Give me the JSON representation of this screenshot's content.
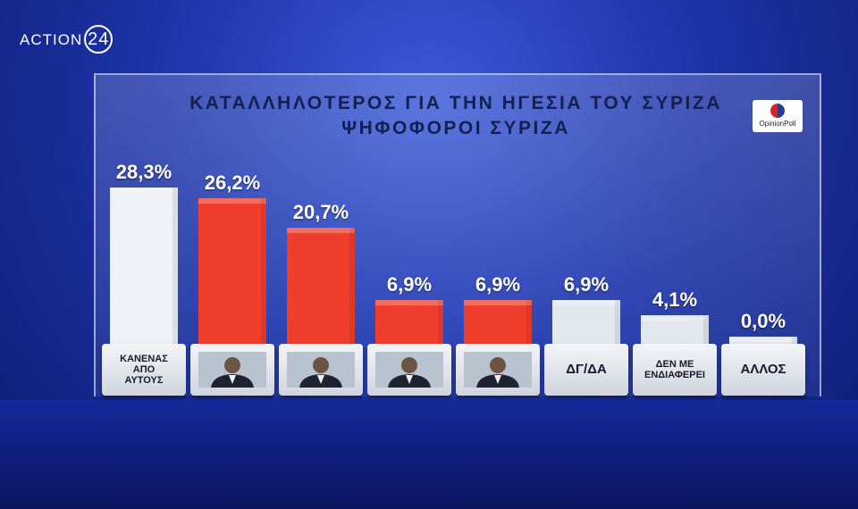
{
  "channel_logo": {
    "name": "ACTION",
    "number": "24"
  },
  "pollster": "OpinionPoll",
  "chart_data": {
    "type": "bar",
    "title": "ΚΑΤΑΛΛΗΛΟΤΕΡΟΣ ΓΙΑ ΤΗΝ ΗΓΕΣΙΑ ΤΟΥ ΣΥΡΙΖΑ",
    "subtitle": "ΨΗΦΟΦΟΡΟΙ ΣΥΡΙΖΑ",
    "categories": [
      "ΚΑΝΕΝΑΣ ΑΠΟ ΑΥΤΟΥΣ",
      null,
      null,
      null,
      null,
      "ΔΓ/ΔΑ",
      "ΔΕΝ ΜΕ ΕΝΔΙΑΦΕΡΕΙ",
      "ΑΛΛΟΣ"
    ],
    "values": [
      28.3,
      26.2,
      20.7,
      6.9,
      6.9,
      6.9,
      4.1,
      0.0
    ],
    "value_labels": [
      "28,3%",
      "26,2%",
      "20,7%",
      "6,9%",
      "6,9%",
      "6,9%",
      "4,1%",
      "0,0%"
    ],
    "colors": [
      "#eef1f6",
      "#ef3e2c",
      "#ef3e2c",
      "#ef3e2c",
      "#ef3e2c",
      "#e3e7ee",
      "#e3e7ee",
      "#e3e7ee"
    ]
  }
}
